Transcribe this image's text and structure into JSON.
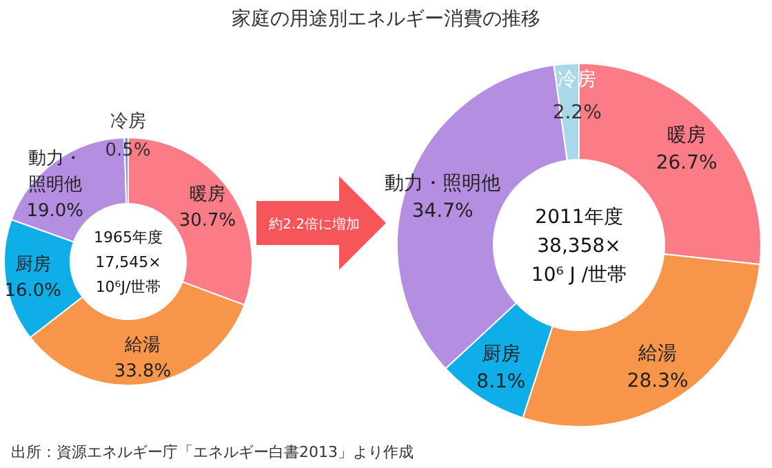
{
  "chart_data": [
    {
      "type": "donut",
      "title": "家庭の用途別エネルギー消費の推移",
      "categories": [
        "暖房",
        "給湯",
        "厨房",
        "動力・照明他",
        "冷房"
      ],
      "values": [
        30.7,
        33.8,
        16.0,
        19.0,
        0.5
      ],
      "value_labels": [
        "30.7%",
        "33.8%",
        "16.0%",
        "19.0%",
        "0.5%"
      ],
      "colors": [
        "#fb7c86",
        "#f7964a",
        "#10aee9",
        "#b48ee0",
        "#7f8ff0"
      ],
      "annotations": [
        "1965年度",
        "17,545×",
        "10⁶J/世帯",
        "出所：資源エネルギー庁「エネルギー白書2013」より作成"
      ]
    },
    {
      "type": "donut",
      "categories": [
        "暖房",
        "給湯",
        "厨房",
        "動力・照明他",
        "冷房"
      ],
      "values": [
        26.7,
        28.3,
        8.1,
        34.7,
        2.2
      ],
      "value_labels": [
        "26.7%",
        "28.3%",
        "8.1%",
        "34.7%",
        "2.2%"
      ],
      "colors": [
        "#fb7c86",
        "#f7964a",
        "#10aee9",
        "#b48ee0",
        "#a8d8ea"
      ],
      "annotations": [
        "2011年度",
        "38,358×",
        "10⁶ J /世帯",
        "約2.2倍に増加"
      ]
    }
  ]
}
